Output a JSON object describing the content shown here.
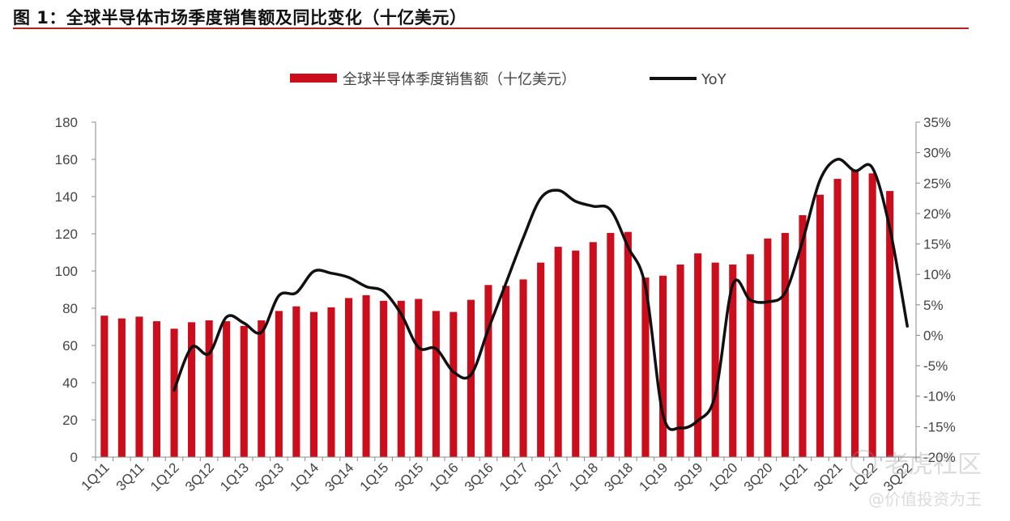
{
  "figure_title": "图 1：全球半导体市场季度销售额及同比变化（十亿美元）",
  "colors": {
    "bar": "#cc0d1c",
    "line": "#111111",
    "title_rule": "#b22222"
  },
  "watermark": {
    "brand": "老虎社区",
    "author": "@价值投资为王"
  },
  "chart_data": {
    "type": "bar",
    "title": "",
    "legend_position": "top-center",
    "legend": [
      {
        "label": "全球半导体季度销售额（十亿美元）",
        "kind": "bar"
      },
      {
        "label": "YoY",
        "kind": "line"
      }
    ],
    "categories": [
      "1Q11",
      "2Q11",
      "3Q11",
      "4Q11",
      "1Q12",
      "2Q12",
      "3Q12",
      "4Q12",
      "1Q13",
      "2Q13",
      "3Q13",
      "4Q13",
      "1Q14",
      "2Q14",
      "3Q14",
      "4Q14",
      "1Q15",
      "2Q15",
      "3Q15",
      "4Q15",
      "1Q16",
      "2Q16",
      "3Q16",
      "4Q16",
      "1Q17",
      "2Q17",
      "3Q17",
      "4Q17",
      "1Q18",
      "2Q18",
      "3Q18",
      "4Q18",
      "1Q19",
      "2Q19",
      "3Q19",
      "4Q19",
      "1Q20",
      "2Q20",
      "3Q20",
      "4Q20",
      "1Q21",
      "2Q21",
      "3Q21",
      "4Q21",
      "1Q22",
      "2Q22",
      "3Q22"
    ],
    "x_tick_labels": [
      "1Q11",
      "3Q11",
      "1Q12",
      "3Q12",
      "1Q13",
      "3Q13",
      "1Q14",
      "3Q14",
      "1Q15",
      "3Q15",
      "1Q16",
      "3Q16",
      "1Q17",
      "3Q17",
      "1Q18",
      "3Q18",
      "1Q19",
      "3Q19",
      "1Q20",
      "3Q20",
      "1Q21",
      "3Q21",
      "1Q22",
      "3Q22"
    ],
    "series": [
      {
        "name": "全球半导体季度销售额（十亿美元）",
        "type": "bar",
        "axis": "left",
        "values": [
          76,
          74.5,
          75.5,
          73,
          69,
          72.5,
          73.5,
          73,
          70.5,
          73.5,
          78.5,
          81,
          78,
          80.5,
          85.5,
          87,
          84,
          84,
          85,
          78.5,
          78,
          84.5,
          92.5,
          92,
          95.5,
          104.5,
          113,
          111,
          115.5,
          120.5,
          121,
          96.5,
          97.5,
          103.5,
          109.5,
          104.5,
          103.5,
          109,
          117.5,
          120.5,
          130,
          141,
          149.5,
          154,
          152.5,
          143,
          null
        ]
      },
      {
        "name": "YoY",
        "type": "line",
        "axis": "right",
        "values": [
          null,
          null,
          null,
          null,
          -9,
          -2,
          -3,
          3,
          2,
          0.5,
          6.5,
          7,
          10.5,
          10.2,
          9.5,
          8,
          7.2,
          3.5,
          -2,
          -2.2,
          -6,
          -6.5,
          1,
          8.5,
          16,
          22.5,
          23.8,
          22,
          21.2,
          20.6,
          14.5,
          8,
          -13,
          -15.2,
          -14,
          -9.8,
          8.3,
          5.8,
          5.5,
          7,
          15.5,
          25.5,
          28.9,
          27,
          27.5,
          17.5,
          1.5
        ]
      }
    ],
    "left_axis": {
      "ylim": [
        0,
        180
      ],
      "ticks": [
        0,
        20,
        40,
        60,
        80,
        100,
        120,
        140,
        160,
        180
      ]
    },
    "right_axis": {
      "ylim": [
        -20,
        35
      ],
      "ticks": [
        "-20%",
        "-15%",
        "-10%",
        "-5%",
        "0%",
        "5%",
        "10%",
        "15%",
        "20%",
        "25%",
        "30%",
        "35%"
      ]
    },
    "grid": false
  }
}
